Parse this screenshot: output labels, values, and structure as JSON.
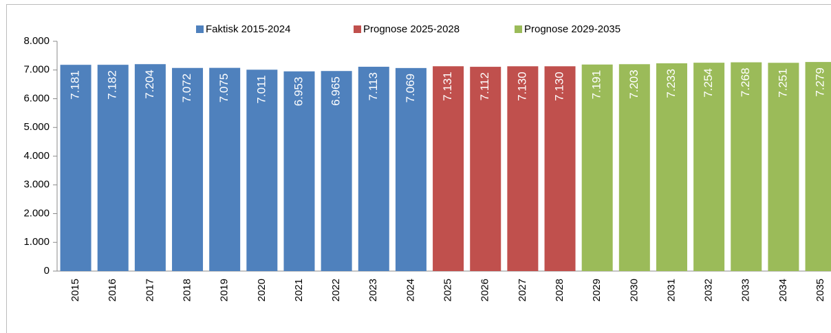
{
  "chart_data": {
    "type": "bar",
    "categories": [
      "2015",
      "2016",
      "2017",
      "2018",
      "2019",
      "2020",
      "2021",
      "2022",
      "2023",
      "2024",
      "2025",
      "2026",
      "2027",
      "2028",
      "2029",
      "2030",
      "2031",
      "2032",
      "2033",
      "2034",
      "2035"
    ],
    "series": [
      {
        "name": "Faktisk 2015-2024",
        "color": "#4f81bd",
        "values": [
          7181,
          7182,
          7204,
          7072,
          7075,
          7011,
          6953,
          6965,
          7113,
          7069,
          null,
          null,
          null,
          null,
          null,
          null,
          null,
          null,
          null,
          null,
          null
        ],
        "value_labels": [
          "7.181",
          "7.182",
          "7.204",
          "7.072",
          "7.075",
          "7.011",
          "6.953",
          "6.965",
          "7.113",
          "7.069",
          null,
          null,
          null,
          null,
          null,
          null,
          null,
          null,
          null,
          null,
          null
        ]
      },
      {
        "name": "Prognose 2025-2028",
        "color": "#c0504d",
        "values": [
          null,
          null,
          null,
          null,
          null,
          null,
          null,
          null,
          null,
          null,
          7131,
          7112,
          7130,
          7130,
          null,
          null,
          null,
          null,
          null,
          null,
          null
        ],
        "value_labels": [
          null,
          null,
          null,
          null,
          null,
          null,
          null,
          null,
          null,
          null,
          "7.131",
          "7.112",
          "7.130",
          "7.130",
          null,
          null,
          null,
          null,
          null,
          null,
          null
        ]
      },
      {
        "name": "Prognose 2029-2035",
        "color": "#9bbb59",
        "values": [
          null,
          null,
          null,
          null,
          null,
          null,
          null,
          null,
          null,
          null,
          null,
          null,
          null,
          null,
          7191,
          7203,
          7233,
          7254,
          7268,
          7251,
          7279
        ],
        "value_labels": [
          null,
          null,
          null,
          null,
          null,
          null,
          null,
          null,
          null,
          null,
          null,
          null,
          null,
          null,
          "7.191",
          "7.203",
          "7.233",
          "7.254",
          "7.268",
          "7.251",
          "7.279"
        ]
      }
    ],
    "ylim": [
      0,
      8000
    ],
    "yticks": [
      0,
      {
        "value": 1000,
        "label": "1.000"
      },
      {
        "value": 2000,
        "label": "2.000"
      },
      {
        "value": 3000,
        "label": "3.000"
      },
      {
        "value": 4000,
        "label": "4.000"
      },
      {
        "value": 5000,
        "label": "5.000"
      },
      {
        "value": 6000,
        "label": "6.000"
      },
      {
        "value": 7000,
        "label": "7.000"
      },
      {
        "value": 8000,
        "label": "8.000"
      }
    ],
    "legend": "top"
  }
}
